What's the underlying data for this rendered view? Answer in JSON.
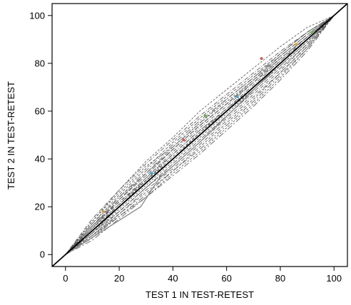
{
  "chart_data": {
    "type": "line",
    "title": "",
    "xlabel": "TEST 1 IN TEST-RETEST",
    "ylabel": "TEST 2 IN TEST-RETEST",
    "xlim": [
      -5,
      105
    ],
    "ylim": [
      -5,
      105
    ],
    "xticks": [
      0,
      20,
      40,
      60,
      80,
      100
    ],
    "yticks": [
      0,
      20,
      40,
      60,
      80,
      100
    ],
    "grid": false,
    "legend": "none",
    "colors": {
      "identity": "#000000",
      "curves": "#555555",
      "highlight": "#8a8a8a",
      "points": [
        "#d9a04a",
        "#6fae5a",
        "#4aa0c8",
        "#c85a5a"
      ]
    },
    "reference_line": {
      "name": "identity",
      "x": [
        0,
        100
      ],
      "y": [
        0,
        100
      ]
    },
    "series": [
      {
        "x": [
          0,
          10,
          20,
          30,
          40,
          50,
          60,
          70,
          80,
          90,
          100
        ],
        "y": [
          0,
          15,
          27,
          38,
          48,
          58,
          67,
          76,
          85,
          93,
          100
        ]
      },
      {
        "x": [
          0,
          10,
          20,
          30,
          40,
          50,
          60,
          70,
          80,
          90,
          100
        ],
        "y": [
          0,
          13,
          25,
          36,
          47,
          57,
          66,
          75,
          84,
          93,
          100
        ]
      },
      {
        "x": [
          0,
          10,
          20,
          30,
          40,
          50,
          60,
          70,
          80,
          90,
          100
        ],
        "y": [
          0,
          12,
          24,
          35,
          46,
          56,
          65,
          74,
          83,
          92,
          100
        ]
      },
      {
        "x": [
          0,
          10,
          20,
          30,
          40,
          50,
          60,
          70,
          80,
          90,
          100
        ],
        "y": [
          0,
          14,
          26,
          37,
          45,
          55,
          64,
          73,
          82,
          91,
          100
        ]
      },
      {
        "x": [
          0,
          10,
          20,
          30,
          40,
          50,
          60,
          70,
          80,
          90,
          100
        ],
        "y": [
          0,
          11,
          23,
          33,
          44,
          54,
          63,
          72,
          82,
          91,
          100
        ]
      },
      {
        "x": [
          0,
          10,
          20,
          30,
          40,
          50,
          60,
          70,
          80,
          90,
          100
        ],
        "y": [
          0,
          12,
          22,
          32,
          43,
          53,
          62,
          72,
          81,
          91,
          100
        ]
      },
      {
        "x": [
          0,
          10,
          20,
          30,
          40,
          50,
          60,
          70,
          80,
          90,
          100
        ],
        "y": [
          0,
          10,
          21,
          32,
          42,
          52,
          61,
          71,
          81,
          90,
          100
        ]
      },
      {
        "x": [
          0,
          10,
          20,
          30,
          40,
          50,
          60,
          70,
          80,
          90,
          100
        ],
        "y": [
          0,
          11,
          21,
          31,
          41,
          51,
          61,
          70,
          80,
          90,
          100
        ]
      },
      {
        "x": [
          0,
          10,
          20,
          30,
          40,
          50,
          60,
          70,
          80,
          90,
          100
        ],
        "y": [
          0,
          10,
          20,
          30,
          40,
          50,
          60,
          70,
          80,
          90,
          100
        ]
      },
      {
        "x": [
          0,
          10,
          20,
          30,
          40,
          50,
          60,
          70,
          80,
          90,
          100
        ],
        "y": [
          0,
          9,
          19,
          29,
          39,
          49,
          59,
          69,
          79,
          89,
          100
        ]
      },
      {
        "x": [
          0,
          10,
          20,
          30,
          40,
          50,
          60,
          70,
          80,
          90,
          100
        ],
        "y": [
          0,
          9,
          18,
          28,
          38,
          48,
          58,
          68,
          78,
          88,
          100
        ]
      },
      {
        "x": [
          0,
          10,
          20,
          30,
          40,
          50,
          60,
          70,
          80,
          90,
          100
        ],
        "y": [
          0,
          8,
          18,
          28,
          37,
          47,
          57,
          67,
          77,
          88,
          100
        ]
      },
      {
        "x": [
          0,
          10,
          20,
          30,
          40,
          50,
          60,
          70,
          80,
          90,
          100
        ],
        "y": [
          0,
          8,
          17,
          27,
          36,
          46,
          56,
          66,
          76,
          87,
          100
        ]
      },
      {
        "x": [
          0,
          10,
          20,
          30,
          40,
          50,
          60,
          70,
          80,
          90,
          100
        ],
        "y": [
          0,
          7,
          17,
          26,
          35,
          45,
          55,
          65,
          76,
          87,
          100
        ]
      },
      {
        "x": [
          0,
          10,
          20,
          30,
          40,
          50,
          60,
          70,
          80,
          90,
          100
        ],
        "y": [
          0,
          7,
          16,
          25,
          35,
          44,
          54,
          64,
          75,
          86,
          100
        ]
      },
      {
        "x": [
          0,
          10,
          20,
          30,
          40,
          50,
          60,
          70,
          80,
          90,
          100
        ],
        "y": [
          0,
          8,
          16,
          24,
          34,
          43,
          53,
          63,
          74,
          86,
          100
        ]
      },
      {
        "x": [
          0,
          10,
          20,
          30,
          40,
          50,
          60,
          70,
          80,
          90,
          100
        ],
        "y": [
          0,
          12,
          23,
          34,
          44,
          54,
          63,
          73,
          83,
          92,
          100
        ]
      },
      {
        "x": [
          0,
          10,
          20,
          30,
          40,
          50,
          60,
          70,
          80,
          90,
          100
        ],
        "y": [
          0,
          11,
          22,
          31,
          42,
          52,
          60,
          70,
          80,
          90,
          100
        ]
      },
      {
        "x": [
          0,
          10,
          20,
          30,
          40,
          50,
          60,
          70,
          80,
          90,
          100
        ],
        "y": [
          0,
          13,
          24,
          34,
          45,
          55,
          65,
          74,
          84,
          93,
          100
        ]
      },
      {
        "x": [
          0,
          10,
          20,
          30,
          40,
          50,
          60,
          70,
          80,
          90,
          100
        ],
        "y": [
          0,
          9,
          20,
          31,
          40,
          51,
          60,
          69,
          79,
          89,
          100
        ]
      },
      {
        "x": [
          0,
          10,
          20,
          30,
          40,
          50,
          60,
          70,
          80,
          90,
          100
        ],
        "y": [
          0,
          6,
          15,
          24,
          33,
          42,
          52,
          62,
          73,
          85,
          100
        ]
      },
      {
        "x": [
          0,
          10,
          20,
          30,
          40,
          50,
          60,
          70,
          80,
          90,
          100
        ],
        "y": [
          0,
          14,
          27,
          39,
          49,
          60,
          69,
          78,
          87,
          95,
          100
        ]
      }
    ],
    "highlight_series": {
      "x": [
        0,
        28,
        35,
        50,
        62,
        80,
        100
      ],
      "y": [
        0,
        20,
        32,
        47,
        60,
        80,
        100
      ]
    },
    "points": [
      {
        "x": 14,
        "y": 18
      },
      {
        "x": 52,
        "y": 58
      },
      {
        "x": 64,
        "y": 66
      },
      {
        "x": 73,
        "y": 82
      },
      {
        "x": 86,
        "y": 88
      },
      {
        "x": 92,
        "y": 93
      },
      {
        "x": 32,
        "y": 34
      },
      {
        "x": 44,
        "y": 48
      }
    ]
  }
}
